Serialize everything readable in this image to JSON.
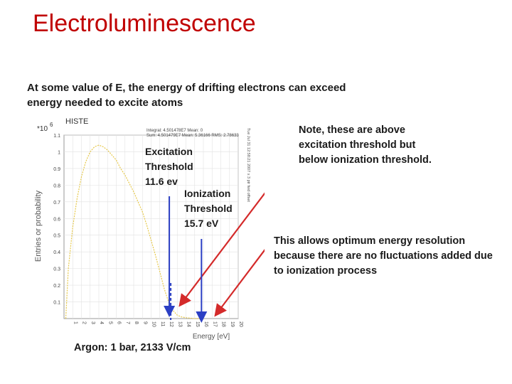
{
  "slide": {
    "title": "Electroluminescence",
    "intro": "At some value of E, the energy of drifting electrons can exceed energy needed to excite atoms",
    "note": "Note, these are above excitation threshold but below ionization threshold.",
    "resolution_text": "This allows optimum energy resolution because  there are no fluctuations added due to ionization process",
    "footer": "Argon: 1 bar, 2133 V/cm"
  },
  "annotations": {
    "excitation": {
      "line1": "Excitation",
      "line2": "Threshold",
      "line3": "11.6 ev",
      "value": 11.6
    },
    "ionization": {
      "line1": "Ionization",
      "line2": "Threshold",
      "line3": "15.7 eV",
      "value": 15.7
    }
  },
  "chart_data": {
    "type": "line",
    "histogram_name": "HISTE",
    "stats_line1": "Integral: 4.501478E7  Mean: 0",
    "stats_line2": "Sum: 4.501479E7  Mean: 5.36166  RMS: 2.78633",
    "side_stamp": "Tue Jul 31 12:58:21 2007 x 3 ptr fwd offset",
    "ylabel": "Entries or probability",
    "xlabel": "Energy [eV]",
    "y_multiplier": "*10",
    "y_exponent": "6",
    "xlim": [
      0,
      20
    ],
    "ylim": [
      0,
      1.1
    ],
    "x_ticks": [
      "1",
      "2",
      "3",
      "4",
      "5",
      "6",
      "7",
      "8",
      "9",
      "10",
      "11",
      "12",
      "13",
      "14",
      "15",
      "16",
      "17",
      "18",
      "19",
      "20"
    ],
    "y_ticks": [
      "0.1",
      "0.2",
      "0.3",
      "0.4",
      "0.5",
      "0.6",
      "0.7",
      "0.8",
      "0.9",
      "1",
      "1.1"
    ],
    "color": "#e6c84a",
    "series": [
      {
        "x": [
          0.2,
          0.5,
          1.0,
          1.5,
          2.0,
          2.5,
          3.0,
          3.5,
          4.0,
          4.5,
          5.0,
          5.5,
          6.0,
          6.5,
          7.0,
          7.5,
          8.0,
          8.5,
          9.0,
          9.5,
          10.0,
          10.5,
          11.0,
          11.5,
          12.0,
          12.5,
          13.0,
          13.5,
          14.0,
          15.0,
          16.0
        ],
        "y": [
          0.0,
          0.3,
          0.55,
          0.72,
          0.85,
          0.94,
          1.0,
          1.03,
          1.04,
          1.03,
          1.01,
          0.98,
          0.95,
          0.9,
          0.86,
          0.81,
          0.76,
          0.7,
          0.64,
          0.56,
          0.47,
          0.38,
          0.28,
          0.18,
          0.1,
          0.05,
          0.02,
          0.01,
          0.005,
          0.0,
          0.0
        ]
      }
    ]
  }
}
